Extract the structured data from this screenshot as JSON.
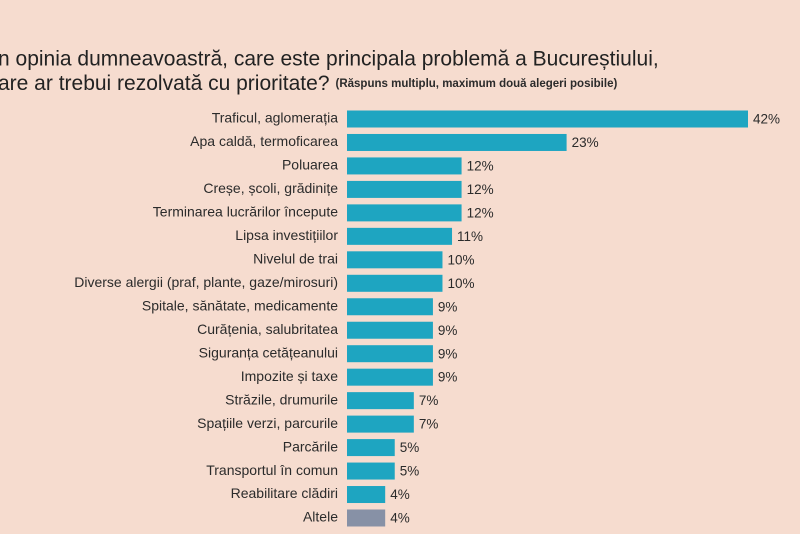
{
  "chart_data": {
    "type": "hbar",
    "title": [
      "n opinia dumneavoastră, care este principala problemă a Bucureștiului,",
      "are ar trebui rezolvată cu prioritate?"
    ],
    "subtitle": "(Răspuns multiplu, maximum două alegeri posibile)",
    "categories": [
      "Traficul, aglomerația",
      "Apa caldă, termoficarea",
      "Poluarea",
      "Creșe, școli, grădinițe",
      "Terminarea lucrărilor începute",
      "Lipsa investițiilor",
      "Nivelul de trai",
      "Diverse alergii (praf, plante, gaze/mirosuri)",
      "Spitale, sănătate, medicamente",
      "Curățenia, salubritatea",
      "Siguranța cetățeanului",
      "Impozite și taxe",
      "Străzile, drumurile",
      "Spațiile verzi, parcurile",
      "Parcările",
      "Transportul în comun",
      "Reabilitare clădiri",
      "Altele"
    ],
    "values": [
      42,
      23,
      12,
      12,
      12,
      11,
      10,
      10,
      9,
      9,
      9,
      9,
      7,
      7,
      5,
      5,
      4,
      4
    ],
    "value_labels": [
      "42%",
      "23%",
      "12%",
      "12%",
      "12%",
      "11%",
      "10%",
      "10%",
      "9%",
      "9%",
      "9%",
      "9%",
      "7%",
      "7%",
      "5%",
      "5%",
      "4%",
      "4%"
    ],
    "colors": [
      "#1ea5c1",
      "#1ea5c1",
      "#1ea5c1",
      "#1ea5c1",
      "#1ea5c1",
      "#1ea5c1",
      "#1ea5c1",
      "#1ea5c1",
      "#1ea5c1",
      "#1ea5c1",
      "#1ea5c1",
      "#1ea5c1",
      "#1ea5c1",
      "#1ea5c1",
      "#1ea5c1",
      "#1ea5c1",
      "#1ea5c1",
      "#8791a6"
    ]
  }
}
